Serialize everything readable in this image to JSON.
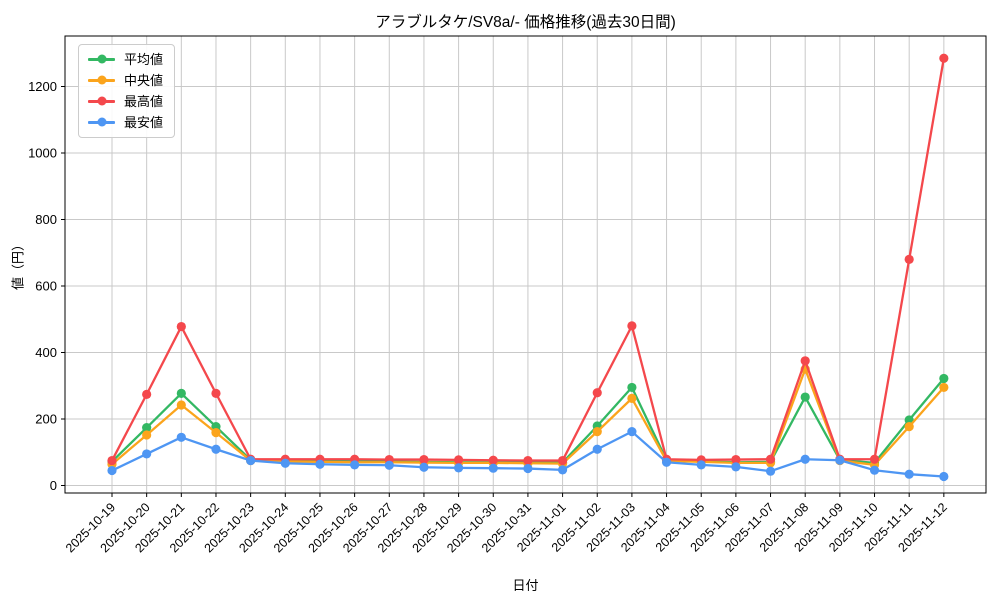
{
  "chart_data": {
    "type": "line",
    "title": "アラブルタケ/SV8a/- 価格推移(過去30日間)",
    "xlabel": "日付",
    "ylabel": "値（円）",
    "x": [
      "2025-10-19",
      "2025-10-20",
      "2025-10-21",
      "2025-10-22",
      "2025-10-23",
      "2025-10-24",
      "2025-10-25",
      "2025-10-26",
      "2025-10-27",
      "2025-10-28",
      "2025-10-29",
      "2025-10-30",
      "2025-10-31",
      "2025-11-01",
      "2025-11-02",
      "2025-11-03",
      "2025-11-04",
      "2025-11-05",
      "2025-11-06",
      "2025-11-07",
      "2025-11-08",
      "2025-11-09",
      "2025-11-10",
      "2025-11-11",
      "2025-11-12"
    ],
    "series": [
      {
        "name": "平均値",
        "color": "#33b863",
        "marker": "circle",
        "values": [
          72,
          174,
          277,
          177,
          77,
          75,
          74,
          73,
          72,
          71,
          70,
          70,
          69,
          69,
          179,
          295,
          76,
          73,
          70,
          71,
          266,
          77,
          68,
          197,
          322
        ]
      },
      {
        "name": "中央値",
        "color": "#fba41c",
        "marker": "circle",
        "values": [
          64,
          152,
          242,
          159,
          75,
          72,
          71,
          70,
          70,
          69,
          68,
          68,
          67,
          66,
          162,
          262,
          74,
          71,
          68,
          68,
          350,
          75,
          62,
          177,
          295
        ]
      },
      {
        "name": "最高値",
        "color": "#f4484c",
        "marker": "circle",
        "values": [
          75,
          274,
          478,
          277,
          79,
          79,
          79,
          79,
          78,
          78,
          77,
          76,
          75,
          75,
          279,
          480,
          79,
          77,
          78,
          79,
          375,
          79,
          79,
          680,
          1285
        ]
      },
      {
        "name": "最安値",
        "color": "#4e96f3",
        "marker": "circle",
        "values": [
          45,
          95,
          145,
          109,
          75,
          67,
          64,
          62,
          61,
          55,
          53,
          52,
          51,
          47,
          109,
          162,
          70,
          62,
          56,
          43,
          79,
          76,
          46,
          34,
          27
        ]
      }
    ],
    "yticks": [
      0,
      200,
      400,
      600,
      800,
      1000,
      1200
    ],
    "ylim": [
      -25,
      1362
    ],
    "grid": true,
    "grid_color": "#c9c9c9",
    "axis_color": "#000000",
    "legend_position": "upper left"
  }
}
